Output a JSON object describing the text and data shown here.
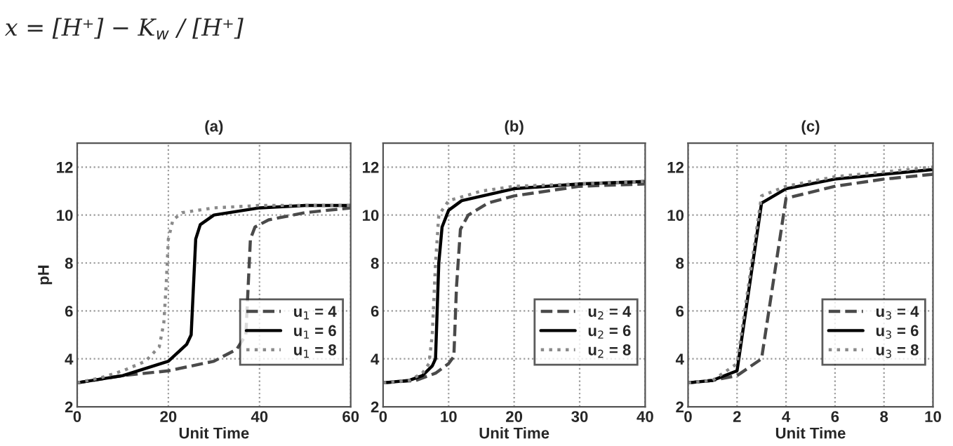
{
  "chart_data": [
    {
      "type": "line",
      "title": "(a)",
      "xlabel": "Unit Time",
      "ylabel": "pH",
      "annotations": [
        "x = [H⁺] − K$_{w}$ / [H⁺]"
      ],
      "xlim": [
        0,
        60
      ],
      "xticks": [
        0,
        20,
        40,
        60
      ],
      "ylim": [
        2,
        13
      ],
      "yticks": [
        2,
        4,
        6,
        8,
        10,
        12
      ],
      "grid": true,
      "legend": "right",
      "series": [
        {
          "name": "u$_{1}$ = 4",
          "color": "#4a4a4a",
          "line_style": "dashed",
          "x": [
            0,
            10,
            20,
            30,
            35,
            37,
            37.5,
            38,
            39,
            42,
            50,
            60
          ],
          "values": [
            3,
            3.3,
            3.5,
            3.9,
            4.4,
            5,
            7,
            9,
            9.5,
            9.8,
            10.1,
            10.3
          ]
        },
        {
          "name": "u$_{1}$ = 6",
          "color": "#000000",
          "line_style": "solid",
          "x": [
            0,
            10,
            20,
            24,
            25,
            25.5,
            26,
            27,
            30,
            40,
            50,
            60
          ],
          "values": [
            3,
            3.3,
            3.9,
            4.6,
            5,
            7,
            9,
            9.6,
            10,
            10.3,
            10.4,
            10.4
          ]
        },
        {
          "name": "u$_{1}$ = 8",
          "color": "#8a8a8a",
          "line_style": "dotted",
          "x": [
            0,
            5,
            10,
            15,
            18,
            19,
            19.5,
            20,
            21,
            23,
            30,
            40,
            60
          ],
          "values": [
            3,
            3.2,
            3.5,
            3.9,
            4.5,
            5.5,
            7,
            9,
            9.8,
            10.1,
            10.3,
            10.4,
            10.4
          ]
        }
      ]
    },
    {
      "type": "line",
      "title": "(b)",
      "xlabel": "Unit Time",
      "xlim": [
        0,
        40
      ],
      "xticks": [
        0,
        10,
        20,
        30,
        40
      ],
      "ylim": [
        2,
        13
      ],
      "yticks": [
        2,
        4,
        6,
        8,
        10,
        12
      ],
      "grid": true,
      "legend": "right",
      "series": [
        {
          "name": "u$_{2}$ = 4",
          "color": "#4a4a4a",
          "line_style": "dashed",
          "x": [
            0,
            5,
            8,
            10,
            10.8,
            11.2,
            11.8,
            13,
            16,
            20,
            30,
            40
          ],
          "values": [
            3,
            3.1,
            3.4,
            3.8,
            4.1,
            7,
            9.4,
            10,
            10.5,
            10.8,
            11.2,
            11.3
          ]
        },
        {
          "name": "u$_{2}$ = 6",
          "color": "#000000",
          "line_style": "solid",
          "x": [
            0,
            4,
            6,
            7.5,
            8,
            8.5,
            9,
            10,
            12,
            20,
            30,
            40
          ],
          "values": [
            3,
            3.1,
            3.3,
            3.7,
            4,
            8,
            9.5,
            10.2,
            10.6,
            11.1,
            11.3,
            11.4
          ]
        },
        {
          "name": "u$_{2}$ = 8",
          "color": "#8a8a8a",
          "line_style": "dotted",
          "x": [
            0,
            4,
            6,
            7,
            7.5,
            8,
            8.5,
            10,
            15,
            20,
            30,
            40
          ],
          "values": [
            3,
            3.1,
            3.4,
            3.8,
            5,
            8,
            10,
            10.6,
            11,
            11.2,
            11.3,
            11.4
          ]
        }
      ]
    },
    {
      "type": "line",
      "title": "(c)",
      "xlabel": "Unit Time",
      "xlim": [
        0,
        10
      ],
      "xticks": [
        0,
        2,
        4,
        6,
        8,
        10
      ],
      "ylim": [
        2,
        13
      ],
      "yticks": [
        2,
        4,
        6,
        8,
        10,
        12
      ],
      "grid": true,
      "legend": "right",
      "series": [
        {
          "name": "u$_{3}$ = 4",
          "color": "#4a4a4a",
          "line_style": "dashed",
          "x": [
            0,
            1,
            2,
            3,
            4,
            6,
            8,
            10
          ],
          "values": [
            3,
            3.1,
            3.3,
            4,
            10.7,
            11.2,
            11.5,
            11.7
          ]
        },
        {
          "name": "u$_{3}$ = 6",
          "color": "#000000",
          "line_style": "solid",
          "x": [
            0,
            1,
            2,
            3,
            4,
            6,
            8,
            10
          ],
          "values": [
            3,
            3.1,
            3.5,
            10.5,
            11.1,
            11.5,
            11.7,
            11.9
          ]
        },
        {
          "name": "u$_{3}$ = 8",
          "color": "#8a8a8a",
          "line_style": "dotted",
          "x": [
            0,
            1,
            2,
            3,
            4,
            6,
            8,
            10
          ],
          "values": [
            3,
            3.1,
            3.8,
            10.8,
            11.2,
            11.6,
            11.8,
            12
          ]
        }
      ]
    }
  ]
}
